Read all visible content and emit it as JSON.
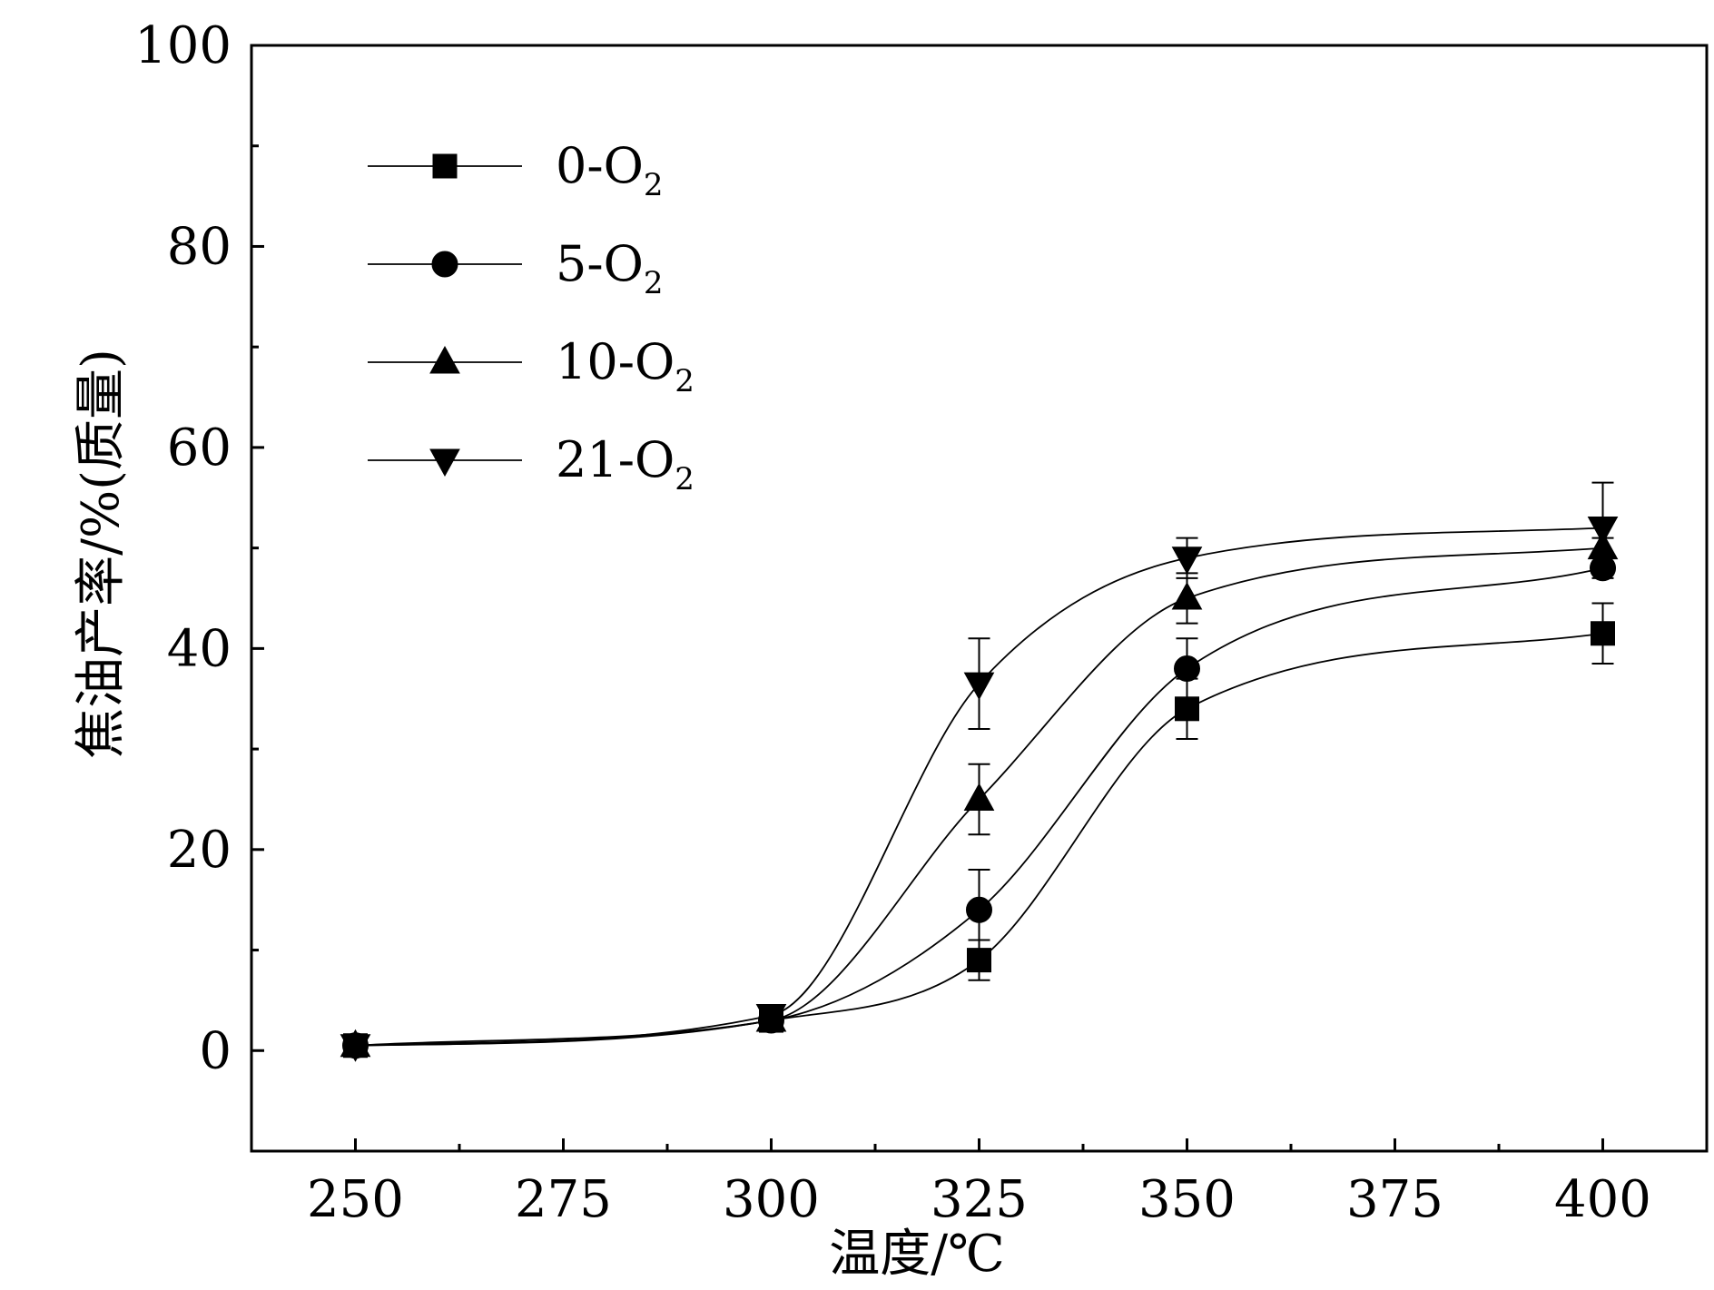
{
  "chart_data": {
    "type": "line",
    "title": "",
    "xlabel": "温度/℃",
    "ylabel": "焦油产率/%(质量)",
    "xlim": [
      237.5,
      412.5
    ],
    "ylim": [
      -10,
      100
    ],
    "xticks": [
      250,
      275,
      300,
      325,
      350,
      375,
      400
    ],
    "yticks": [
      0,
      20,
      40,
      60,
      80,
      100
    ],
    "legend_position": "top-left",
    "grid": false,
    "x": [
      250,
      300,
      325,
      350,
      400
    ],
    "series": [
      {
        "name": "0-O₂",
        "label_main": "0-O",
        "label_sub": "2",
        "marker": "square",
        "values": [
          0.5,
          3.0,
          9.0,
          34.0,
          41.5
        ],
        "errors": [
          0,
          0,
          2.0,
          3.0,
          3.0
        ]
      },
      {
        "name": "5-O₂",
        "label_main": "5-O",
        "label_sub": "2",
        "marker": "circle",
        "values": [
          0.5,
          3.0,
          14.0,
          38.0,
          48.0
        ],
        "errors": [
          0,
          0,
          4.0,
          3.0,
          1.0
        ]
      },
      {
        "name": "10-O₂",
        "label_main": "10-O",
        "label_sub": "2",
        "marker": "triangle-up",
        "values": [
          0.5,
          3.0,
          25.0,
          45.0,
          50.0
        ],
        "errors": [
          0,
          0,
          3.5,
          2.5,
          1.0
        ]
      },
      {
        "name": "21-O₂",
        "label_main": "21-O",
        "label_sub": "2",
        "marker": "triangle-down",
        "values": [
          0.5,
          3.5,
          36.5,
          49.0,
          52.0
        ],
        "errors": [
          0,
          0,
          4.5,
          2.0,
          4.5
        ]
      }
    ]
  }
}
